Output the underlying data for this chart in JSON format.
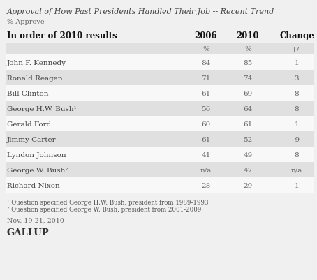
{
  "title": "Approval of How Past Presidents Handled Their Job -- Recent Trend",
  "subtitle": "% Approve",
  "col_header_label": "In order of 2010 results",
  "col_headers": [
    "2006",
    "2010",
    "Change"
  ],
  "col_subheaders": [
    "%",
    "%",
    "+/-"
  ],
  "rows": [
    {
      "name": "John F. Kennedy",
      "val2006": "84",
      "val2010": "85",
      "change": "1"
    },
    {
      "name": "Ronald Reagan",
      "val2006": "71",
      "val2010": "74",
      "change": "3"
    },
    {
      "name": "Bill Clinton",
      "val2006": "61",
      "val2010": "69",
      "change": "8"
    },
    {
      "name": "George H.W. Bush¹",
      "val2006": "56",
      "val2010": "64",
      "change": "8"
    },
    {
      "name": "Gerald Ford",
      "val2006": "60",
      "val2010": "61",
      "change": "1"
    },
    {
      "name": "Jimmy Carter",
      "val2006": "61",
      "val2010": "52",
      "change": "-9"
    },
    {
      "name": "Lyndon Johnson",
      "val2006": "41",
      "val2010": "49",
      "change": "8"
    },
    {
      "name": "George W. Bush²",
      "val2006": "n/a",
      "val2010": "47",
      "change": "n/a"
    },
    {
      "name": "Richard Nixon",
      "val2006": "28",
      "val2010": "29",
      "change": "1"
    }
  ],
  "shaded_rows": [
    1,
    3,
    5,
    7
  ],
  "footnote1": "¹ Question specified George H.W. Bush, president from 1989-1993",
  "footnote2": "² Question specified George W. Bush, president from 2001-2009",
  "date_note": "Nov. 19-21, 2010",
  "source": "GALLUP",
  "bg_color": "#f0f0f0",
  "shaded_row_color": "#e0e0e0",
  "header_bg_color": "#e0e0e0",
  "white_row_color": "#f8f8f8",
  "title_color": "#555555",
  "header_text_color": "#111111",
  "data_text_color": "#444444",
  "subheader_text_color": "#666666"
}
